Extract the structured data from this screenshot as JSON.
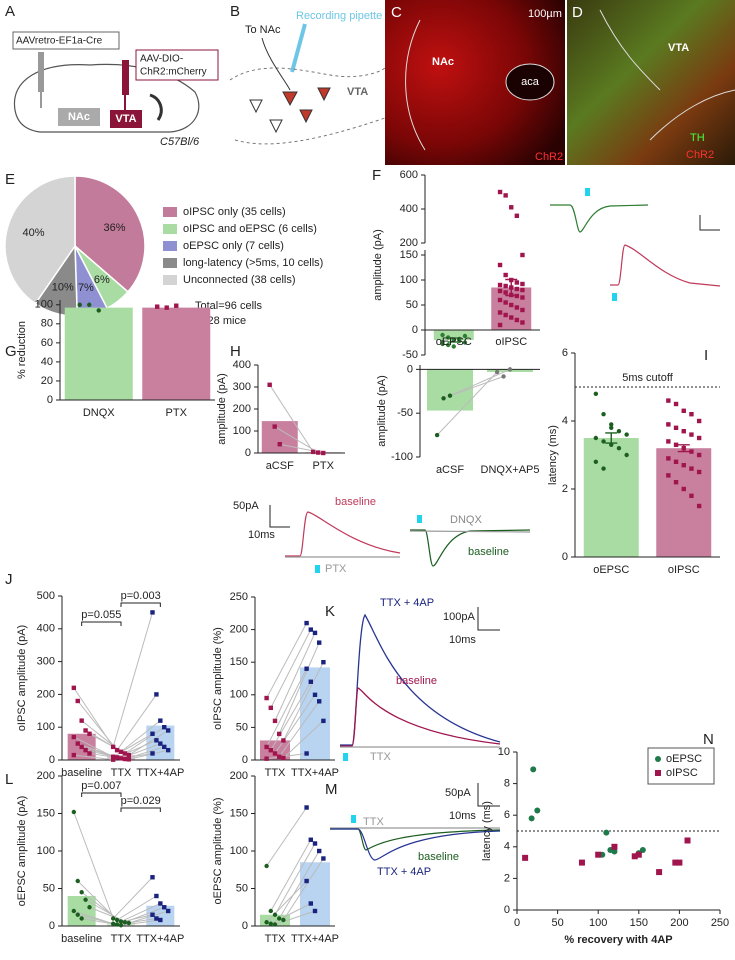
{
  "illustrations": [
    {
      "panel": "A",
      "texts": [
        "AAVretro-EF1a-Cre",
        "AAV-DIO-",
        "ChR2:mCherry",
        "NAc",
        "VTA",
        "C57Bl/6"
      ]
    },
    {
      "panel": "B",
      "texts": [
        "To NAc",
        "Recording pipette",
        "VTA"
      ]
    },
    {
      "panel": "C",
      "texts": [
        "100µm",
        "NAc",
        "aca",
        "ChR2"
      ]
    },
    {
      "panel": "D",
      "texts": [
        "VTA",
        "TH",
        "ChR2"
      ]
    },
    {
      "texts": [
        "50pA",
        "10ms",
        "baseline",
        "PTX",
        "DNQX",
        "baseline"
      ]
    },
    {
      "panel": "K",
      "texts": [
        "TTX + 4AP",
        "100pA",
        "10ms",
        "baseline",
        "TTX"
      ]
    },
    {
      "panel": "M",
      "texts": [
        "50pA",
        "10ms",
        "TTX",
        "baseline",
        "TTX + 4AP"
      ]
    }
  ],
  "chart_data": [
    {
      "panel": "E",
      "type": "pie",
      "categories": [
        "oIPSC only (35 cells)",
        "oIPSC and oEPSC (6 cells)",
        "oEPSC only (7 cells)",
        "long-latency (>5ms, 10 cells)",
        "Unconnected (38 cells)"
      ],
      "values": [
        36,
        6,
        7,
        10,
        40
      ],
      "value_labels": [
        "36%",
        "6%",
        "7%",
        "10%",
        "40%"
      ],
      "colors": [
        "#c27b9a",
        "#a9dca3",
        "#8f90d2",
        "#8a8a8a",
        "#d4d4d4"
      ],
      "annotations": [
        "Total=96 cells",
        "n=28 mice"
      ]
    },
    {
      "panel": "F",
      "type": "bar",
      "ylabel": "amplitude (pA)",
      "categories": [
        "oEPSC",
        "oIPSC"
      ],
      "values": [
        -20,
        85
      ],
      "errors": [
        4,
        16
      ],
      "colors": [
        "#a9dca3",
        "#c9809f"
      ],
      "point_colors": [
        "#2e7d32",
        "#a0154e"
      ],
      "point_shapes": [
        "circle",
        "square"
      ],
      "points": [
        [
          -10,
          -15,
          -20,
          -22,
          -25,
          -28,
          -30,
          -33,
          -18,
          -12,
          -24
        ],
        [
          500,
          480,
          410,
          360,
          150,
          130,
          110,
          100,
          95,
          92,
          90,
          88,
          85,
          82,
          80,
          78,
          75,
          70,
          68,
          65,
          60,
          55,
          50,
          45,
          40,
          35,
          30,
          25,
          20,
          15,
          10
        ]
      ],
      "ylim": [
        -50,
        600
      ],
      "ybreak": [
        160,
        200
      ],
      "yticks": [
        -50,
        0,
        50,
        100,
        150,
        200,
        400,
        600
      ]
    },
    {
      "panel": "G",
      "type": "bar",
      "ylabel": "% reduction",
      "categories": [
        "DNQX",
        "PTX"
      ],
      "values": [
        97,
        97
      ],
      "colors": [
        "#a9dca3",
        "#c9809f"
      ],
      "point_colors": [
        "#1b5e20",
        "#a0154e"
      ],
      "point_shapes": [
        "circle",
        "square"
      ],
      "points": [
        [
          100,
          100,
          94
        ],
        [
          98,
          97,
          99
        ]
      ],
      "ylim": [
        0,
        105
      ],
      "yticks": [
        0,
        20,
        40,
        60,
        80,
        100
      ]
    },
    {
      "panel": "H",
      "type": "bar",
      "ylabel": "amplitude (pA)",
      "categories": [
        "aCSF",
        "PTX"
      ],
      "values": [
        145,
        3
      ],
      "colors": [
        "#c9809f",
        "#c9809f"
      ],
      "point_colors": [
        "#a0154e",
        "#a0154e"
      ],
      "point_shapes": [
        "square",
        "square"
      ],
      "points": [
        [
          310,
          120,
          40
        ],
        [
          5,
          2,
          0
        ]
      ],
      "paired": true,
      "ylim": [
        0,
        400
      ],
      "yticks": [
        0,
        100,
        200,
        300,
        400
      ]
    },
    {
      "type": "bar",
      "ylabel": "amplitude (pA)",
      "categories": [
        "aCSF",
        "DNQX+AP5"
      ],
      "values": [
        -47,
        -3
      ],
      "colors": [
        "#a9dca3",
        "#a9dca3"
      ],
      "point_colors": [
        "#1b5e20",
        "#777777"
      ],
      "point_shapes": [
        "circle",
        "circle"
      ],
      "points": [
        [
          -75,
          -33,
          -30
        ],
        [
          -3,
          -8,
          0
        ]
      ],
      "paired": true,
      "ylim": [
        -100,
        5
      ],
      "yticks": [
        -100,
        -50,
        0
      ]
    },
    {
      "panel": "I",
      "type": "bar",
      "ylabel": "latency (ms)",
      "categories": [
        "oEPSC",
        "oIPSC"
      ],
      "values": [
        3.5,
        3.2
      ],
      "errors": [
        0.15,
        0.1
      ],
      "colors": [
        "#a9dca3",
        "#c9809f"
      ],
      "point_colors": [
        "#1b5e20",
        "#a0154e"
      ],
      "point_shapes": [
        "circle",
        "square"
      ],
      "points": [
        [
          4.8,
          4.2,
          3.9,
          3.7,
          3.6,
          3.5,
          3.4,
          3.3,
          3.2,
          3.0,
          2.8,
          2.6,
          3.8
        ],
        [
          4.6,
          4.5,
          4.3,
          4.2,
          4.0,
          3.9,
          3.8,
          3.7,
          3.6,
          3.5,
          3.4,
          3.3,
          3.2,
          3.1,
          3.0,
          2.9,
          2.8,
          2.7,
          2.6,
          2.5,
          2.4,
          2.2,
          2.0,
          1.8,
          1.5
        ]
      ],
      "refline": 5,
      "refline_label": "5ms cutoff",
      "ylim": [
        0,
        6
      ],
      "yticks": [
        0,
        2,
        4,
        6
      ]
    },
    {
      "panel": "J",
      "type": "bar",
      "ylabel": "oIPSC amplitude (pA)",
      "categories": [
        "baseline",
        "TTX",
        "TTX+4AP"
      ],
      "values": [
        80,
        15,
        105
      ],
      "colors": [
        "#c9809f",
        "#e7c3d2",
        "#b9d4f1"
      ],
      "point_colors": [
        "#a0154e",
        "#a0154e",
        "#1a237e"
      ],
      "point_shapes": [
        "square",
        "square",
        "square"
      ],
      "points": [
        [
          220,
          180,
          120,
          90,
          80,
          70,
          50,
          40,
          30,
          20,
          15
        ],
        [
          40,
          30,
          25,
          20,
          15,
          10,
          8,
          5,
          3,
          2,
          1
        ],
        [
          450,
          200,
          120,
          100,
          90,
          80,
          60,
          50,
          40,
          30,
          20
        ]
      ],
      "paired": true,
      "annotations": [
        "p=0.055",
        "p=0.003"
      ],
      "ylim": [
        0,
        500
      ],
      "yticks": [
        0,
        100,
        200,
        300,
        400,
        500
      ]
    },
    {
      "type": "bar",
      "ylabel": "oIPSC amplitude (%)",
      "categories": [
        "TTX",
        "TTX+4AP"
      ],
      "values": [
        30,
        142
      ],
      "colors": [
        "#c9809f",
        "#b9d4f1"
      ],
      "point_colors": [
        "#a0154e",
        "#1a237e"
      ],
      "point_shapes": [
        "square",
        "square"
      ],
      "points": [
        [
          95,
          80,
          60,
          40,
          30,
          20,
          15,
          10,
          5,
          3,
          2
        ],
        [
          210,
          200,
          195,
          180,
          150,
          140,
          120,
          100,
          90,
          60,
          10
        ]
      ],
      "paired": true,
      "ylim": [
        0,
        250
      ],
      "yticks": [
        0,
        50,
        100,
        150,
        200,
        250
      ]
    },
    {
      "panel": "L",
      "type": "bar",
      "ylabel": "oEPSC amplitude (pA)",
      "categories": [
        "baseline",
        "TTX",
        "TTX+4AP"
      ],
      "values": [
        40,
        5,
        27
      ],
      "colors": [
        "#a9dca3",
        "#d6eed3",
        "#b9d4f1"
      ],
      "point_colors": [
        "#1b5e20",
        "#1b5e20",
        "#1a237e"
      ],
      "point_shapes": [
        "circle",
        "circle",
        "square"
      ],
      "points": [
        [
          152,
          60,
          45,
          35,
          25,
          20,
          15,
          10
        ],
        [
          10,
          8,
          6,
          5,
          4,
          3,
          2,
          1
        ],
        [
          65,
          40,
          30,
          25,
          20,
          15,
          10,
          8
        ]
      ],
      "paired": true,
      "annotations": [
        "p=0.007",
        "p=0.029"
      ],
      "ylim": [
        0,
        200
      ],
      "yticks": [
        0,
        50,
        100,
        150,
        200
      ]
    },
    {
      "type": "bar",
      "ylabel": "oEPSC amplitude (%)",
      "categories": [
        "TTX",
        "TTX+4AP"
      ],
      "values": [
        15,
        85
      ],
      "colors": [
        "#a9dca3",
        "#b9d4f1"
      ],
      "point_colors": [
        "#1b5e20",
        "#1a237e"
      ],
      "point_shapes": [
        "circle",
        "square"
      ],
      "points": [
        [
          80,
          20,
          15,
          10,
          8,
          5,
          3,
          2
        ],
        [
          158,
          115,
          110,
          100,
          90,
          60,
          30,
          20
        ]
      ],
      "paired": true,
      "ylim": [
        0,
        200
      ],
      "yticks": [
        0,
        50,
        100,
        150,
        200
      ]
    },
    {
      "panel": "N",
      "type": "scatter",
      "xlabel": "% recovery with 4AP",
      "ylabel": "latency (ms)",
      "series": [
        {
          "name": "oEPSC",
          "color": "#1e7a4a",
          "shape": "circle",
          "x": [
            18,
            20,
            25,
            105,
            110,
            115,
            120,
            150,
            155
          ],
          "values": [
            5.8,
            8.9,
            6.3,
            3.5,
            4.9,
            3.8,
            3.7,
            3.6,
            3.8
          ]
        },
        {
          "name": "oIPSC",
          "color": "#a0154e",
          "shape": "square",
          "x": [
            10,
            80,
            100,
            120,
            145,
            150,
            175,
            195,
            200,
            210
          ],
          "values": [
            3.3,
            3.0,
            3.5,
            4.0,
            3.4,
            3.5,
            2.4,
            3.0,
            3.0,
            4.4
          ]
        }
      ],
      "refline": 5,
      "legend": "upper right",
      "xlim": [
        0,
        250
      ],
      "xticks": [
        0,
        50,
        100,
        150,
        200,
        250
      ],
      "ylim": [
        0,
        10
      ],
      "yticks": [
        0,
        2,
        4,
        6,
        8,
        10
      ]
    }
  ]
}
